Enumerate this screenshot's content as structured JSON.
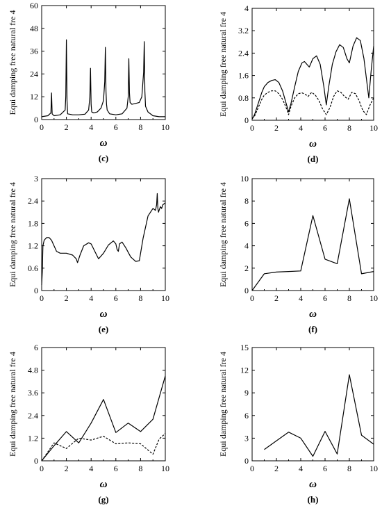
{
  "chart_data": [
    {
      "type": "line",
      "panel_label": "(c)",
      "xlabel": "ω",
      "ylabel": "Equi damping free natural fre 4",
      "xlim": [
        0,
        10
      ],
      "ylim": [
        0,
        60
      ],
      "xticks": [
        0,
        2,
        4,
        6,
        8,
        10
      ],
      "yticks": [
        0,
        12,
        24,
        36,
        48,
        60
      ],
      "yticklabels": [
        "0",
        "12",
        "24",
        "36",
        "48",
        "60"
      ],
      "series": [
        {
          "style": "solid",
          "x": [
            0,
            0.5,
            0.75,
            0.8,
            0.85,
            1.0,
            1.5,
            1.9,
            1.95,
            2.0,
            2.05,
            2.1,
            2.5,
            3.0,
            3.5,
            3.8,
            3.9,
            3.95,
            4.0,
            4.05,
            4.2,
            4.5,
            4.8,
            5.0,
            5.1,
            5.15,
            5.2,
            5.25,
            5.3,
            5.5,
            6.0,
            6.5,
            6.9,
            7.0,
            7.05,
            7.1,
            7.15,
            7.3,
            7.6,
            7.9,
            8.1,
            8.25,
            8.3,
            8.35,
            8.4,
            8.6,
            9.0,
            9.5,
            10.0
          ],
          "y": [
            1.5,
            2.0,
            3.5,
            14.0,
            3.0,
            2.0,
            2.5,
            5.0,
            12.0,
            42.0,
            10.0,
            3.0,
            2.5,
            2.5,
            2.8,
            5.0,
            12.0,
            27.0,
            8.0,
            4.0,
            3.5,
            4.0,
            6.0,
            10.0,
            20.0,
            38.0,
            15.0,
            8.0,
            5.0,
            3.0,
            2.5,
            3.0,
            6.0,
            12.0,
            32.0,
            14.0,
            9.0,
            8.0,
            8.5,
            9.0,
            12.0,
            25.0,
            41.0,
            15.0,
            7.0,
            4.0,
            2.0,
            1.5,
            1.5
          ]
        }
      ]
    },
    {
      "type": "line",
      "panel_label": "(d)",
      "xlabel": "ω",
      "ylabel": "Equi damping free natural fre 4",
      "xlim": [
        0,
        10
      ],
      "ylim": [
        0,
        4
      ],
      "xticks": [
        0,
        2,
        4,
        6,
        8,
        10
      ],
      "yticks": [
        0,
        0.8,
        1.6,
        2.4,
        3.2,
        4
      ],
      "yticklabels": [
        "0",
        "0.8",
        "1.6",
        "2.4",
        "3.2",
        "4"
      ],
      "series": [
        {
          "style": "solid",
          "x": [
            0,
            0.2,
            0.5,
            0.8,
            1.0,
            1.3,
            1.6,
            1.9,
            2.2,
            2.5,
            2.8,
            3.0,
            3.2,
            3.5,
            3.8,
            4.1,
            4.3,
            4.5,
            4.7,
            5.0,
            5.3,
            5.6,
            5.9,
            6.1,
            6.3,
            6.6,
            6.9,
            7.2,
            7.5,
            7.8,
            8.0,
            8.3,
            8.6,
            8.9,
            9.2,
            9.4,
            9.6,
            9.8,
            10.0
          ],
          "y": [
            0.05,
            0.2,
            0.6,
            1.0,
            1.2,
            1.35,
            1.42,
            1.45,
            1.35,
            1.05,
            0.6,
            0.3,
            0.6,
            1.2,
            1.75,
            2.05,
            2.1,
            2.0,
            1.9,
            2.2,
            2.3,
            2.0,
            1.2,
            0.55,
            1.2,
            2.0,
            2.45,
            2.7,
            2.6,
            2.2,
            2.05,
            2.65,
            2.95,
            2.85,
            2.2,
            1.5,
            0.8,
            1.8,
            2.65
          ]
        },
        {
          "style": "dashed",
          "x": [
            0,
            0.2,
            0.5,
            0.8,
            1.0,
            1.3,
            1.6,
            1.9,
            2.2,
            2.5,
            2.8,
            3.0,
            3.2,
            3.5,
            3.8,
            4.1,
            4.4,
            4.6,
            4.9,
            5.2,
            5.5,
            5.8,
            6.1,
            6.4,
            6.7,
            7.0,
            7.3,
            7.6,
            7.9,
            8.2,
            8.5,
            8.8,
            9.1,
            9.4,
            9.7,
            10.0
          ],
          "y": [
            0.05,
            0.15,
            0.45,
            0.75,
            0.9,
            1.0,
            1.05,
            1.05,
            0.95,
            0.75,
            0.45,
            0.2,
            0.5,
            0.8,
            0.95,
            0.98,
            0.92,
            0.85,
            1.0,
            0.9,
            0.7,
            0.4,
            0.2,
            0.45,
            0.85,
            1.05,
            1.0,
            0.85,
            0.75,
            1.0,
            0.95,
            0.7,
            0.35,
            0.2,
            0.55,
            0.8
          ]
        }
      ]
    },
    {
      "type": "line",
      "panel_label": "(e)",
      "xlabel": "ω",
      "ylabel": "Equi damping free natural fre 4",
      "xlim": [
        0,
        10
      ],
      "ylim": [
        0,
        3
      ],
      "xticks": [
        0,
        2,
        4,
        6,
        8,
        10
      ],
      "yticks": [
        0,
        0.6,
        1.2,
        1.8,
        2.4,
        3
      ],
      "yticklabels": [
        "0",
        "0.6",
        "1.2",
        "1.8",
        "2.4",
        "3"
      ],
      "series": [
        {
          "style": "solid",
          "x": [
            0,
            0.05,
            0.1,
            0.2,
            0.4,
            0.6,
            0.8,
            1.0,
            1.2,
            1.5,
            2.0,
            2.5,
            2.8,
            2.9,
            3.0,
            3.1,
            3.4,
            3.8,
            4.0,
            4.3,
            4.6,
            5.0,
            5.4,
            5.8,
            6.0,
            6.1,
            6.2,
            6.3,
            6.5,
            6.8,
            7.2,
            7.6,
            7.9,
            8.2,
            8.6,
            9.0,
            9.2,
            9.3,
            9.35,
            9.4,
            9.45,
            9.5,
            9.6,
            9.7,
            9.8,
            10.0
          ],
          "y": [
            0.15,
            0.5,
            1.2,
            1.35,
            1.42,
            1.42,
            1.35,
            1.2,
            1.05,
            1.0,
            1.0,
            0.95,
            0.85,
            0.75,
            0.85,
            0.95,
            1.2,
            1.28,
            1.25,
            1.05,
            0.85,
            1.0,
            1.22,
            1.33,
            1.25,
            1.1,
            1.05,
            1.25,
            1.3,
            1.15,
            0.9,
            0.78,
            0.8,
            1.4,
            2.0,
            2.2,
            2.15,
            2.3,
            2.6,
            2.2,
            2.1,
            2.15,
            2.25,
            2.2,
            2.3,
            2.35
          ]
        }
      ]
    },
    {
      "type": "line",
      "panel_label": "(f)",
      "xlabel": "ω",
      "ylabel": "Equi damping free natural fre 4",
      "xlim": [
        0,
        10
      ],
      "ylim": [
        0,
        10
      ],
      "xticks": [
        0,
        2,
        4,
        6,
        8,
        10
      ],
      "yticks": [
        0,
        2,
        4,
        6,
        8,
        10
      ],
      "yticklabels": [
        "0",
        "2",
        "4",
        "6",
        "8",
        "10"
      ],
      "series": [
        {
          "style": "solid",
          "x": [
            0,
            1,
            2,
            3,
            4,
            5,
            6,
            7,
            8,
            9,
            10
          ],
          "y": [
            0,
            1.5,
            1.65,
            1.7,
            1.75,
            6.7,
            2.8,
            2.4,
            8.2,
            1.5,
            1.7
          ]
        }
      ]
    },
    {
      "type": "line",
      "panel_label": "(g)",
      "xlabel": "ω",
      "ylabel": "Equi damping free natural fre 4",
      "xlim": [
        0,
        10
      ],
      "ylim": [
        0,
        6
      ],
      "xticks": [
        0,
        2,
        4,
        6,
        8,
        10
      ],
      "yticks": [
        0,
        1.2,
        2.4,
        3.6,
        4.8,
        6
      ],
      "yticklabels": [
        "0",
        "1.2",
        "2.4",
        "3.6",
        "4.8",
        "6"
      ],
      "series": [
        {
          "style": "solid",
          "x": [
            0,
            1,
            2,
            3,
            4,
            5,
            6,
            7,
            8,
            9,
            10
          ],
          "y": [
            0,
            0.8,
            1.55,
            0.95,
            2.0,
            3.25,
            1.5,
            2.0,
            1.55,
            2.2,
            4.5
          ]
        },
        {
          "style": "dashed",
          "x": [
            0,
            1,
            2,
            3,
            4,
            5,
            6,
            7,
            8,
            9,
            9.5,
            10
          ],
          "y": [
            0,
            0.95,
            0.65,
            1.2,
            1.1,
            1.3,
            0.9,
            0.95,
            0.9,
            0.35,
            1.15,
            1.45
          ]
        }
      ]
    },
    {
      "type": "line",
      "panel_label": "(h)",
      "xlabel": "ω",
      "ylabel": "Equi damping free natural fre 4",
      "xlim": [
        0,
        10
      ],
      "ylim": [
        0,
        15
      ],
      "xticks": [
        0,
        2,
        4,
        6,
        8,
        10
      ],
      "yticks": [
        0,
        3,
        6,
        9,
        12,
        15
      ],
      "yticklabels": [
        "0",
        "3",
        "6",
        "9",
        "12",
        "15"
      ],
      "series": [
        {
          "style": "solid",
          "x": [
            1,
            3,
            4,
            5,
            6,
            7,
            8,
            9,
            10
          ],
          "y": [
            1.5,
            3.8,
            3.0,
            0.6,
            3.9,
            0.9,
            11.4,
            3.4,
            2.2
          ]
        }
      ]
    }
  ]
}
